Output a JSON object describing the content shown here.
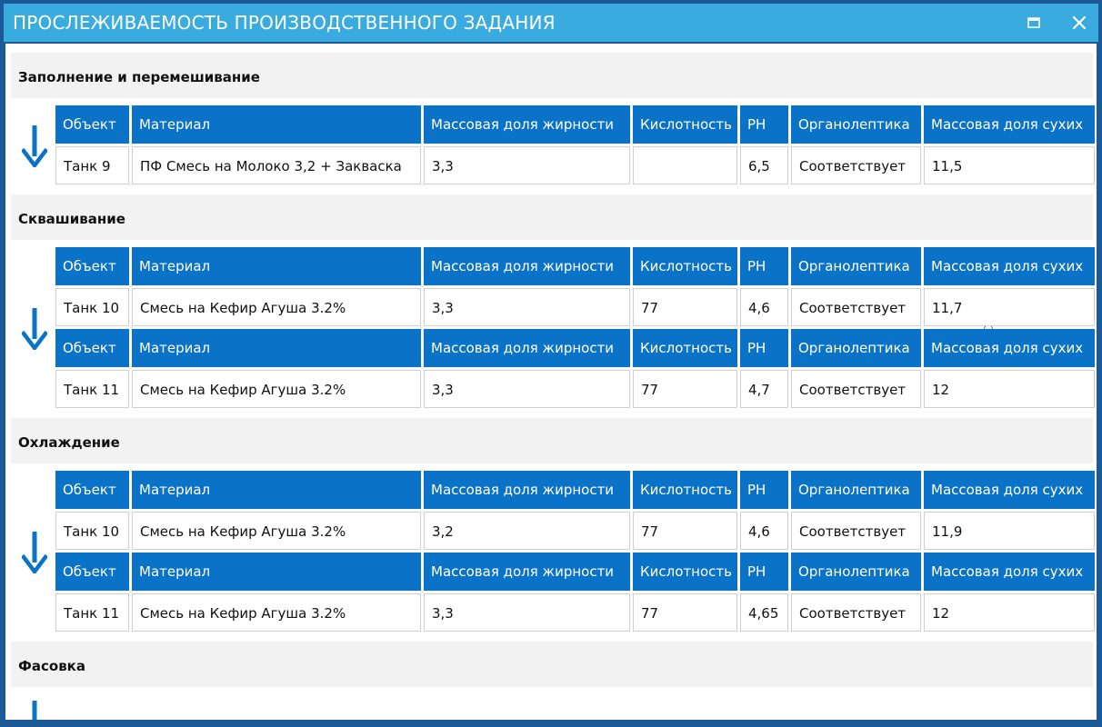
{
  "window": {
    "title": "ПРОСЛЕЖИВАЕМОСТЬ ПРОИЗВОДСТВЕННОГО ЗАДАНИЯ"
  },
  "columns": [
    "Объект",
    "Материал",
    "Массовая доля жирности",
    "Кислотность",
    "PH",
    "Органолептика",
    "Массовая доля сухих"
  ],
  "stages": [
    {
      "label": "Заполнение и перемешивание",
      "rows": [
        [
          "Танк 9",
          "ПФ Смесь на Молоко 3,2 + Закваска",
          "3,3",
          "",
          "6,5",
          "Соответствует",
          "11,5"
        ]
      ]
    },
    {
      "label": "Сквашивание",
      "rows": [
        [
          "Танк 10",
          "Смесь на Кефир Агуша 3.2%",
          "3,3",
          "77",
          "4,6",
          "Соответствует",
          "11,7"
        ],
        [
          "Танк 11",
          "Смесь на Кефир Агуша 3.2%",
          "3,3",
          "77",
          "4,7",
          "Соответствует",
          "12"
        ]
      ]
    },
    {
      "label": "Охлаждение",
      "rows": [
        [
          "Танк 10",
          "Смесь на Кефир Агуша 3.2%",
          "3,2",
          "77",
          "4,6",
          "Соответствует",
          "11,9"
        ],
        [
          "Танк 11",
          "Смесь на Кефир Агуша 3.2%",
          "3,3",
          "77",
          "4,65",
          "Соответствует",
          "12"
        ]
      ]
    },
    {
      "label": "Фасовка",
      "rows": []
    }
  ],
  "colors": {
    "titlebar": "#3aabdf",
    "header_cell": "#0a73c7",
    "arrow": "#0a73c7"
  },
  "icons": {
    "maximize": "maximize-icon",
    "close": "close-icon",
    "flow": "arrow-down-icon"
  }
}
